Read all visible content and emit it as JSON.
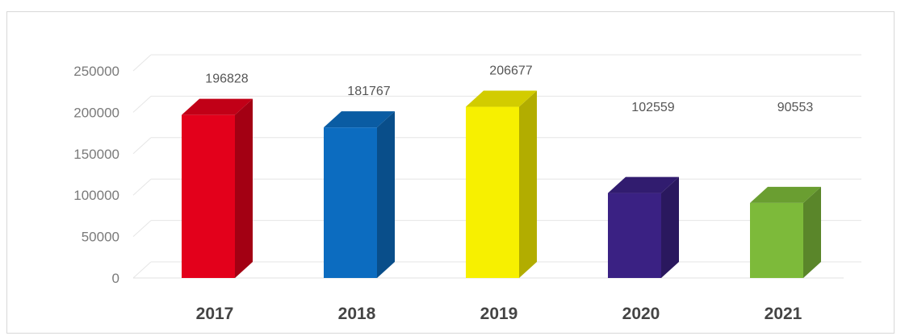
{
  "chart_data": {
    "type": "bar",
    "style": "3d-column",
    "categories": [
      "2017",
      "2018",
      "2019",
      "2020",
      "2021"
    ],
    "values": [
      196828,
      181767,
      206677,
      102559,
      90553
    ],
    "data_labels": [
      "196828",
      "181767",
      "206677",
      "102559",
      "90553"
    ],
    "y_ticks": [
      "0",
      "50000",
      "100000",
      "150000",
      "200000",
      "250000"
    ],
    "ylim": [
      0,
      250000
    ],
    "grid": true,
    "legend": "none",
    "colors": [
      "#e3001b",
      "#0c6cc0",
      "#f7f000",
      "#3a2183",
      "#7dba3a"
    ]
  }
}
